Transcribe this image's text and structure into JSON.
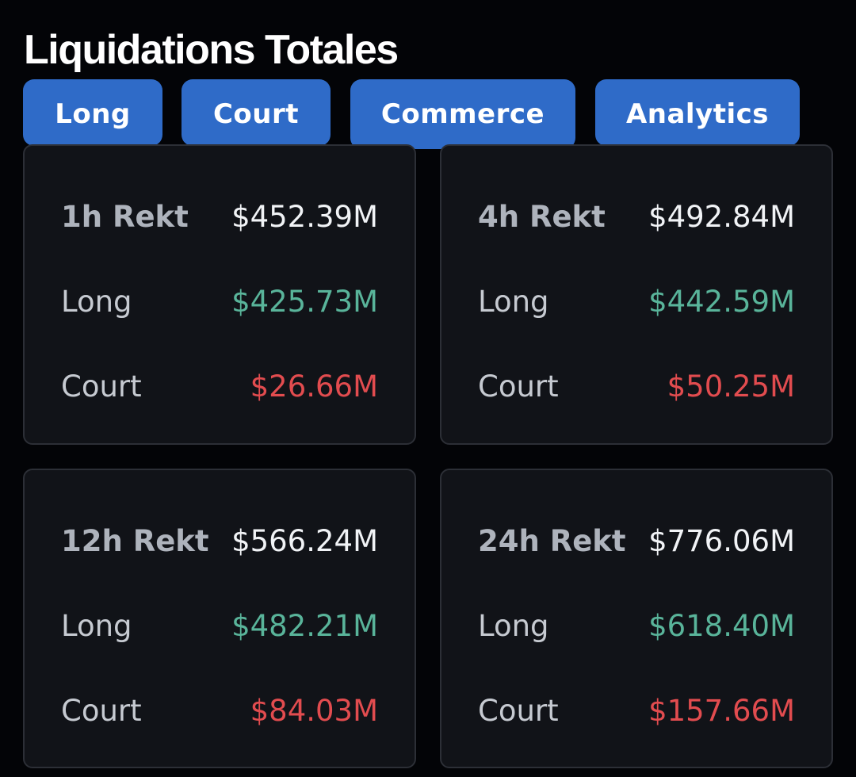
{
  "page": {
    "title": "Liquidations Totales"
  },
  "tabs": [
    {
      "label": "Long"
    },
    {
      "label": "Court"
    },
    {
      "label": "Commerce"
    },
    {
      "label": "Analytics"
    }
  ],
  "cards": [
    {
      "rekt_label": "1h Rekt",
      "rekt_value": "$452.39M",
      "long_label": "Long",
      "long_value": "$425.73M",
      "short_label": "Court",
      "short_value": "$26.66M"
    },
    {
      "rekt_label": "4h Rekt",
      "rekt_value": "$492.84M",
      "long_label": "Long",
      "long_value": "$442.59M",
      "short_label": "Court",
      "short_value": "$50.25M"
    },
    {
      "rekt_label": "12h Rekt",
      "rekt_value": "$566.24M",
      "long_label": "Long",
      "long_value": "$482.21M",
      "short_label": "Court",
      "short_value": "$84.03M"
    },
    {
      "rekt_label": "24h Rekt",
      "rekt_value": "$776.06M",
      "long_label": "Long",
      "long_value": "$618.40M",
      "short_label": "Court",
      "short_value": "$157.66M"
    }
  ],
  "colors": {
    "background": "#030407",
    "tab_blue": "#2f6bc8",
    "card_bg": "#111318",
    "long_green": "#59b49a",
    "short_red": "#e24c4f"
  }
}
